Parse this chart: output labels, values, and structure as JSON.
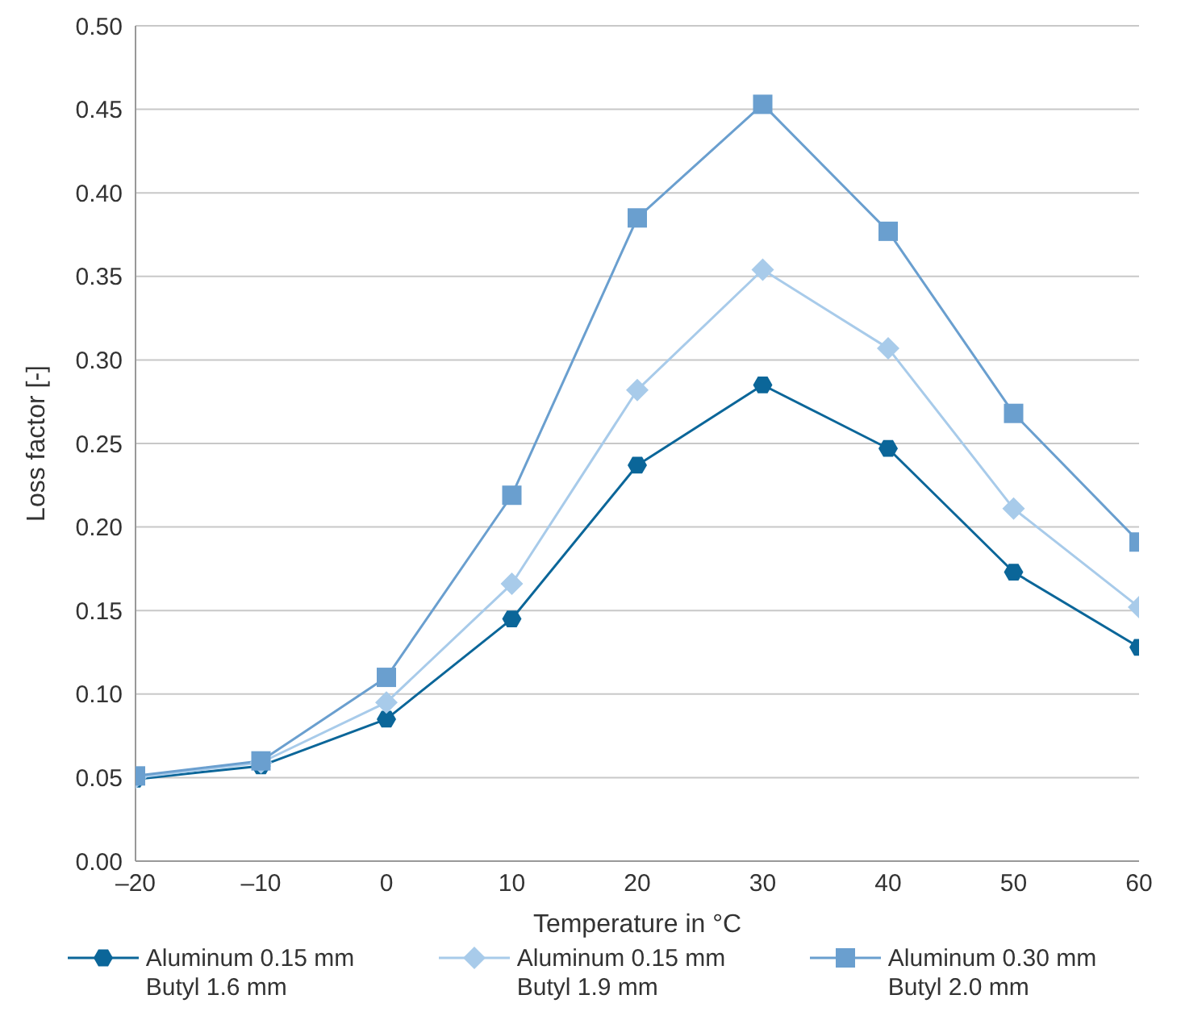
{
  "chart_data": {
    "type": "line",
    "xlabel": "Temperature in °C",
    "ylabel": "Loss factor [-]",
    "x": [
      -20,
      -10,
      0,
      10,
      20,
      30,
      40,
      50,
      60
    ],
    "xlim": [
      -20,
      60
    ],
    "xticks": [
      {
        "value": -20,
        "label": "–20"
      },
      {
        "value": -10,
        "label": "–10"
      },
      0,
      10,
      20,
      30,
      40,
      50,
      60
    ],
    "ylim": [
      0,
      0.5
    ],
    "yticks": [
      {
        "value": 0,
        "label": "0.00"
      },
      {
        "value": 0.05,
        "label": "0.05"
      },
      {
        "value": 0.1,
        "label": "0.10"
      },
      {
        "value": 0.15,
        "label": "0.15"
      },
      {
        "value": 0.2,
        "label": "0.20"
      },
      {
        "value": 0.25,
        "label": "0.25"
      },
      {
        "value": 0.3,
        "label": "0.30"
      },
      {
        "value": 0.35,
        "label": "0.35"
      },
      {
        "value": 0.4,
        "label": "0.40"
      },
      {
        "value": 0.45,
        "label": "0.45"
      },
      {
        "value": 0.5,
        "label": "0.50"
      }
    ],
    "grid": "y",
    "legend": "bottom",
    "line_style": "solid",
    "series": [
      {
        "name": "Aluminum 0.15 mm\nButyl 1.6 mm",
        "color": "#0b6699",
        "marker": "circle",
        "values": [
          0.049,
          0.057,
          0.085,
          0.145,
          0.237,
          0.285,
          0.247,
          0.173,
          0.128
        ]
      },
      {
        "name": "Aluminum 0.15 mm\nButyl 1.9 mm",
        "color": "#a8cbea",
        "marker": "diamond",
        "values": [
          0.05,
          0.059,
          0.095,
          0.166,
          0.282,
          0.354,
          0.307,
          0.211,
          0.152
        ]
      },
      {
        "name": "Aluminum 0.30 mm\nButyl 2.0 mm",
        "color": "#6a9fcf",
        "marker": "square",
        "values": [
          0.051,
          0.06,
          0.11,
          0.219,
          0.385,
          0.453,
          0.377,
          0.268,
          0.191
        ]
      }
    ]
  }
}
